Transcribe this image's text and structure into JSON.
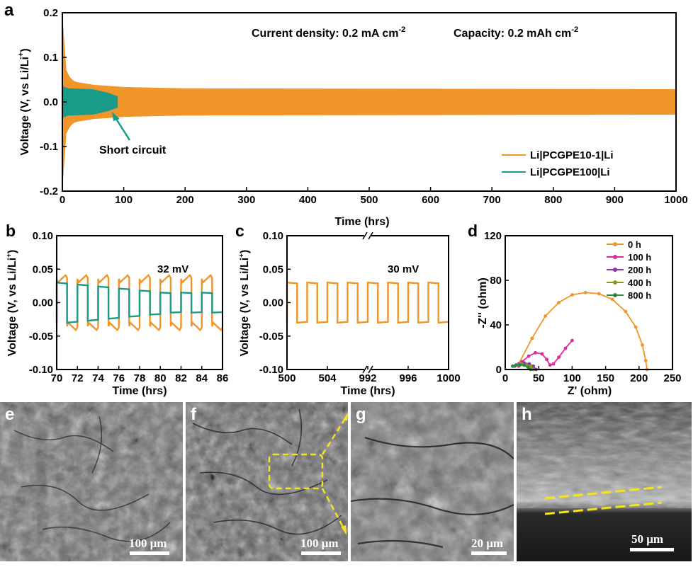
{
  "colors": {
    "orange": "#f0952a",
    "teal": "#1a9a88",
    "magenta": "#e0299a",
    "purple": "#8b33b0",
    "olive": "#8a9a20",
    "green": "#2a8a3a",
    "dash": "#f5e322"
  },
  "panels": {
    "a": {
      "letter": "a",
      "annotation_current": "Current density: 0.2 mA cm",
      "annotation_current_sup": "-2",
      "annotation_capacity": "Capacity: 0.2 mAh cm",
      "annotation_capacity_sup": "-2",
      "short_circuit": "Short circuit",
      "ylabel": "Voltage (V, vs Li/Li",
      "ylabel_sup": "+",
      "ylabel_end": ")",
      "xlabel": "Time (hrs)",
      "legend": [
        "Li|PCGPE10-1|Li",
        "Li|PCGPE100|Li"
      ]
    },
    "b": {
      "letter": "b",
      "label": "32 mV",
      "ylabel": "Voltage (V, vs Li/Li",
      "ylabel_sup": "+",
      "ylabel_end": ")",
      "xlabel": "Time (hrs)"
    },
    "c": {
      "letter": "c",
      "label": "30 mV",
      "ylabel": "Voltage (V, vs Li/Li",
      "ylabel_sup": "+",
      "ylabel_end": ")",
      "xlabel": "Time (hrs)"
    },
    "d": {
      "letter": "d",
      "ylabel": "-Z'' (ohm)",
      "xlabel": "Z' (ohm)",
      "legend": [
        "0 h",
        "100 h",
        "200 h",
        "400 h",
        "800 h"
      ]
    }
  },
  "chart_data": [
    {
      "type": "line",
      "panel": "a",
      "xlabel": "Time (hrs)",
      "ylabel": "Voltage (V, vs Li/Li+)",
      "xlim": [
        0,
        1000
      ],
      "ylim": [
        -0.2,
        0.2
      ],
      "xticks": [
        "0",
        "100",
        "200",
        "300",
        "400",
        "500",
        "600",
        "700",
        "800",
        "900",
        "1000"
      ],
      "yticks": [
        "-0.2",
        "-0.1",
        "0.0",
        "0.1",
        "0.2"
      ],
      "series": [
        {
          "name": "Li|PCGPE10-1|Li",
          "color": "#f0952a",
          "envelope_t": [
            0,
            1,
            3,
            8,
            20,
            50,
            100,
            200,
            1000
          ],
          "envelope_v": [
            0.19,
            0.15,
            0.09,
            0.06,
            0.045,
            0.038,
            0.033,
            0.03,
            0.028
          ]
        },
        {
          "name": "Li|PCGPE100|Li",
          "color": "#1a9a88",
          "envelope_t": [
            0,
            10,
            50,
            75,
            90
          ],
          "envelope_v": [
            0.035,
            0.03,
            0.028,
            0.02,
            0.012
          ],
          "end_t": 90
        }
      ]
    },
    {
      "type": "line",
      "panel": "b",
      "xlabel": "Time (hrs)",
      "ylabel": "Voltage (V, vs Li/Li+)",
      "xlim": [
        70,
        86
      ],
      "ylim": [
        -0.1,
        0.1
      ],
      "xticks": [
        "70",
        "72",
        "74",
        "76",
        "78",
        "80",
        "82",
        "84",
        "86"
      ],
      "yticks": [
        "-0.10",
        "-0.05",
        "0.00",
        "0.05",
        "0.10"
      ],
      "annotation": "32 mV",
      "series": [
        {
          "color": "#f0952a",
          "amplitude": 0.033,
          "overshoot": 0.008,
          "period": 2
        },
        {
          "color": "#1a9a88",
          "amplitude_start": 0.03,
          "amplitude_end": 0.015,
          "period": 2
        }
      ]
    },
    {
      "type": "line",
      "panel": "c",
      "xlabel": "Time (hrs)",
      "ylabel": "Voltage (V, vs Li/Li+)",
      "xlim_left": [
        500,
        508
      ],
      "xlim_right": [
        992,
        1000
      ],
      "axis_break": true,
      "ylim": [
        -0.1,
        0.1
      ],
      "xticks": [
        "500",
        "504",
        "992",
        "996",
        "1000"
      ],
      "yticks": [
        "-0.10",
        "-0.05",
        "0.00",
        "0.05",
        "0.10"
      ],
      "annotation": "30 mV",
      "series": [
        {
          "color": "#f0952a",
          "amplitude": 0.03,
          "period": 2
        }
      ]
    },
    {
      "type": "scatter",
      "panel": "d",
      "xlabel": "Z' (ohm)",
      "ylabel": "-Z'' (ohm)",
      "xlim": [
        0,
        250
      ],
      "ylim": [
        0,
        120
      ],
      "xticks": [
        "0",
        "50",
        "100",
        "150",
        "200",
        "250"
      ],
      "yticks": [
        "0",
        "40",
        "80",
        "120"
      ],
      "series": [
        {
          "name": "0 h",
          "color": "#f0952a",
          "x": [
            20,
            40,
            60,
            80,
            100,
            120,
            140,
            160,
            180,
            195,
            205,
            210,
            212
          ],
          "y": [
            5,
            28,
            48,
            60,
            67,
            69,
            68,
            63,
            52,
            38,
            22,
            8,
            0
          ]
        },
        {
          "name": "100 h",
          "color": "#e0299a",
          "x": [
            20,
            25,
            35,
            45,
            55,
            62,
            67,
            72,
            80,
            90,
            100
          ],
          "y": [
            3,
            7,
            12,
            15,
            14,
            9,
            4,
            5,
            11,
            19,
            26
          ]
        },
        {
          "name": "200 h",
          "color": "#8b33b0",
          "x": [
            14,
            20,
            28,
            36,
            42,
            46
          ],
          "y": [
            3,
            5,
            6,
            5,
            3,
            0
          ]
        },
        {
          "name": "400 h",
          "color": "#8a9a20",
          "x": [
            12,
            18,
            25,
            32,
            38,
            42
          ],
          "y": [
            3,
            4,
            5,
            4,
            3,
            0
          ]
        },
        {
          "name": "800 h",
          "color": "#2a8a3a",
          "x": [
            11,
            16,
            22,
            28,
            34,
            38
          ],
          "y": [
            3,
            4,
            4,
            4,
            2,
            0
          ]
        }
      ]
    }
  ],
  "sem_images": [
    {
      "letter": "e",
      "scalebar": "100 μm"
    },
    {
      "letter": "f",
      "scalebar": "100 μm"
    },
    {
      "letter": "g",
      "scalebar": "20 μm"
    },
    {
      "letter": "h",
      "scalebar": "50 μm"
    }
  ]
}
